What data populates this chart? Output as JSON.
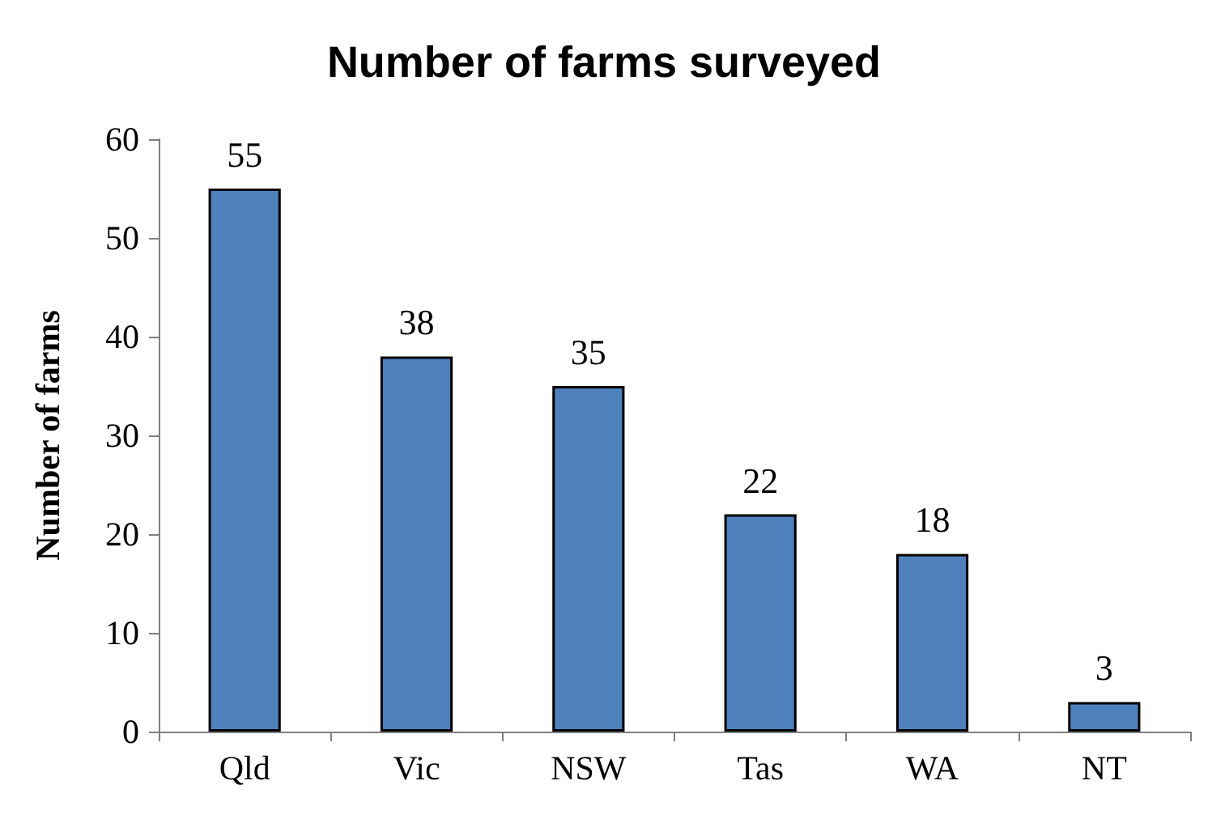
{
  "chart_data": {
    "type": "bar",
    "title": "Number of farms surveyed",
    "ylabel": "Number of farms",
    "categories": [
      "Qld",
      "Vic",
      "NSW",
      "Tas",
      "WA",
      "NT"
    ],
    "values": [
      55,
      38,
      35,
      22,
      18,
      3
    ],
    "color": "#4f81bd",
    "ylim": [
      0,
      60
    ],
    "yticks": [
      0,
      10,
      20,
      30,
      40,
      50,
      60
    ],
    "grid": false,
    "data_labels": true
  }
}
